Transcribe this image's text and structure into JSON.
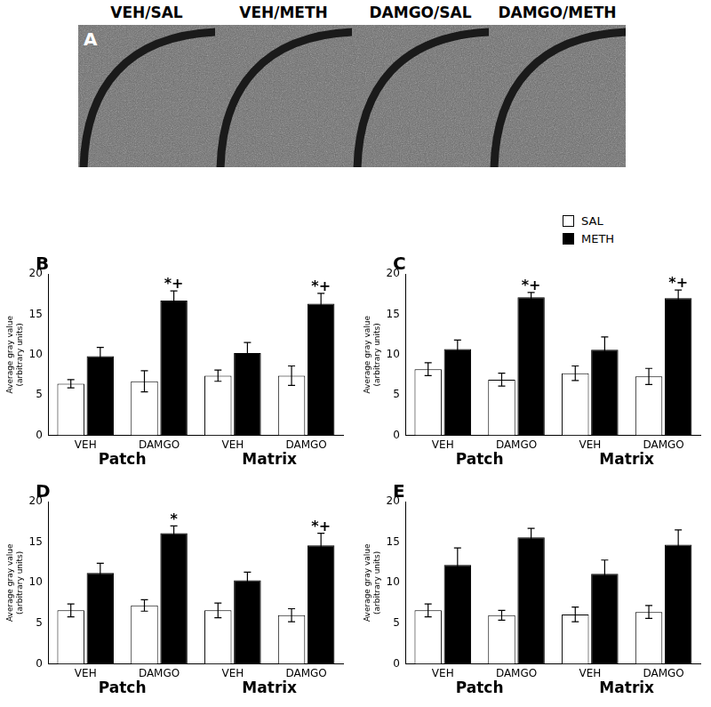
{
  "panel_a": {
    "label": "A",
    "images": [
      "VEH/SAL",
      "VEH/METH",
      "DAMGO/SAL",
      "DAMGO/METH"
    ]
  },
  "chart_data": [
    {
      "type": "bar",
      "label": "B",
      "categories": [
        "VEH",
        "DAMGO",
        "VEH",
        "DAMGO"
      ],
      "group_labels": [
        "Patch",
        "Matrix"
      ],
      "y_label": [
        "Average gray value",
        "(arbitrary units)"
      ],
      "ylim": [
        0,
        20
      ],
      "yticks": [
        0,
        5,
        10,
        15,
        20
      ],
      "grid": false,
      "series": [
        {
          "name": "SAL",
          "color": "#ffffff",
          "values": [
            6.4,
            6.7,
            7.4,
            7.4
          ],
          "errors": [
            0.5,
            1.3,
            0.7,
            1.2
          ]
        },
        {
          "name": "METH",
          "color": "#000000",
          "values": [
            9.8,
            16.7,
            10.2,
            16.3
          ],
          "errors": [
            1.1,
            1.2,
            1.3,
            1.3
          ],
          "annotations": [
            null,
            "*+",
            null,
            "*+"
          ]
        }
      ]
    },
    {
      "type": "bar",
      "label": "C",
      "legend": "top-right",
      "categories": [
        "VEH",
        "DAMGO",
        "VEH",
        "DAMGO"
      ],
      "group_labels": [
        "Patch",
        "Matrix"
      ],
      "y_label": [
        "Average gray value",
        "(arbitrary units)"
      ],
      "ylim": [
        0,
        20
      ],
      "yticks": [
        0,
        5,
        10,
        15,
        20
      ],
      "grid": false,
      "series": [
        {
          "name": "SAL",
          "color": "#ffffff",
          "values": [
            8.2,
            6.9,
            7.7,
            7.3
          ],
          "errors": [
            0.8,
            0.8,
            0.9,
            1.0
          ]
        },
        {
          "name": "METH",
          "color": "#000000",
          "values": [
            10.7,
            17.1,
            10.6,
            17.0
          ],
          "errors": [
            1.1,
            0.6,
            1.6,
            1.0
          ],
          "annotations": [
            null,
            "*+",
            null,
            "*+"
          ]
        }
      ]
    },
    {
      "type": "bar",
      "label": "D",
      "categories": [
        "VEH",
        "DAMGO",
        "VEH",
        "DAMGO"
      ],
      "group_labels": [
        "Patch",
        "Matrix"
      ],
      "y_label": [
        "Average gray value",
        "(arbitrary units)"
      ],
      "ylim": [
        0,
        20
      ],
      "yticks": [
        0,
        5,
        10,
        15,
        20
      ],
      "grid": false,
      "series": [
        {
          "name": "SAL",
          "color": "#ffffff",
          "values": [
            6.6,
            7.2,
            6.6,
            6.0
          ],
          "errors": [
            0.8,
            0.7,
            0.9,
            0.8
          ]
        },
        {
          "name": "METH",
          "color": "#000000",
          "values": [
            11.2,
            16.1,
            10.3,
            14.6
          ],
          "errors": [
            1.2,
            0.9,
            1.0,
            1.5
          ],
          "annotations": [
            null,
            "*",
            null,
            "*+"
          ]
        }
      ]
    },
    {
      "type": "bar",
      "label": "E",
      "categories": [
        "VEH",
        "DAMGO",
        "VEH",
        "DAMGO"
      ],
      "group_labels": [
        "Patch",
        "Matrix"
      ],
      "y_label": [
        "Average gray value",
        "(arbitrary units)"
      ],
      "ylim": [
        0,
        20
      ],
      "yticks": [
        0,
        5,
        10,
        15,
        20
      ],
      "grid": false,
      "series": [
        {
          "name": "SAL",
          "color": "#ffffff",
          "values": [
            6.6,
            6.0,
            6.1,
            6.4
          ],
          "errors": [
            0.8,
            0.6,
            0.9,
            0.8
          ]
        },
        {
          "name": "METH",
          "color": "#000000",
          "values": [
            12.2,
            15.6,
            11.1,
            14.7
          ],
          "errors": [
            2.1,
            1.1,
            1.7,
            1.8
          ]
        }
      ]
    }
  ]
}
